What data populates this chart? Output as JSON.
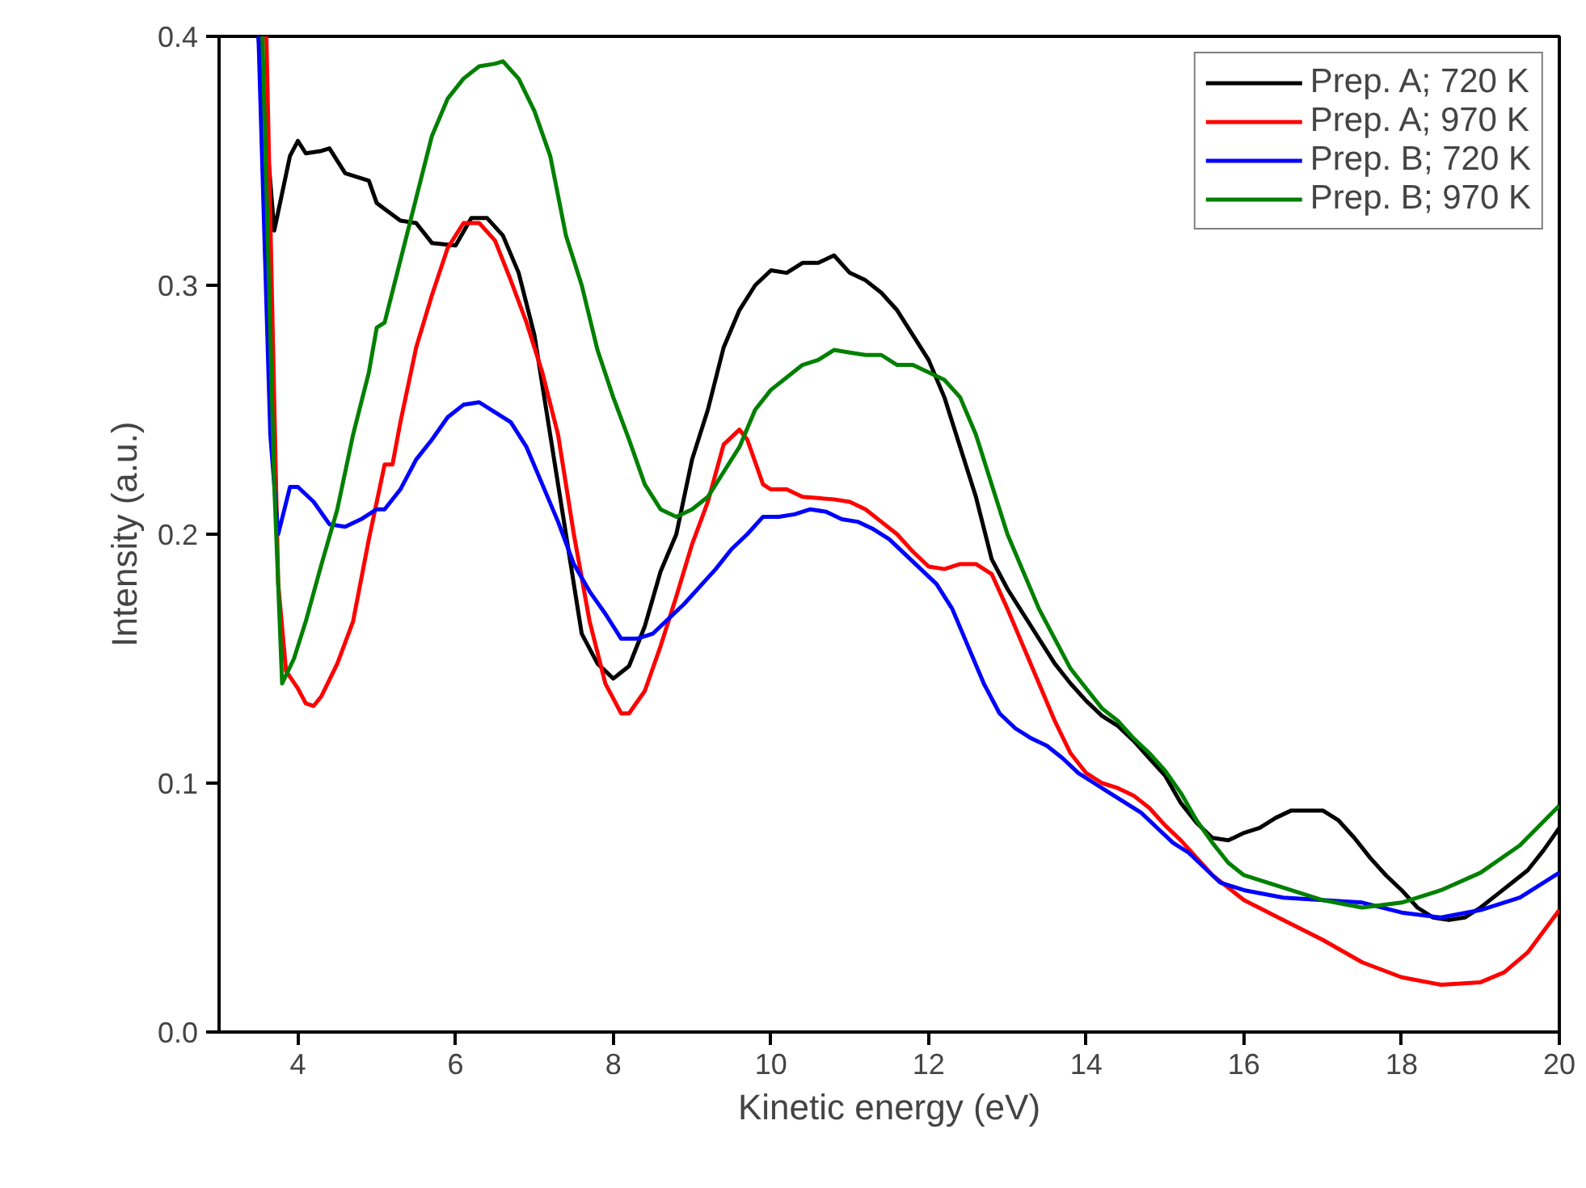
{
  "chart_data": {
    "type": "line",
    "xlabel": "Kinetic energy (eV)",
    "ylabel": "Intensity (a.u.)",
    "xlim": [
      3,
      20
    ],
    "ylim": [
      0,
      0.4
    ],
    "xticks": [
      4,
      6,
      8,
      10,
      12,
      14,
      16,
      18,
      20
    ],
    "yticks": [
      {
        "value": 0,
        "label": "0.0"
      },
      0.1,
      0.2,
      0.3,
      0.4
    ],
    "grid": false,
    "legend": "top right",
    "marker": "none",
    "line_style": "solid",
    "series": [
      {
        "name": "Prep. A; 720 K",
        "color": "#000000",
        "x": [
          3.5,
          3.7,
          3.9,
          4.0,
          4.1,
          4.3,
          4.4,
          4.6,
          4.9,
          5.0,
          5.3,
          5.5,
          5.7,
          6.0,
          6.2,
          6.4,
          6.6,
          6.8,
          7.0,
          7.2,
          7.4,
          7.6,
          7.8,
          8.0,
          8.2,
          8.4,
          8.6,
          8.8,
          9.0,
          9.2,
          9.4,
          9.6,
          9.8,
          10.0,
          10.2,
          10.4,
          10.6,
          10.8,
          11.0,
          11.2,
          11.4,
          11.6,
          11.8,
          12.0,
          12.2,
          12.4,
          12.6,
          12.8,
          13.0,
          13.2,
          13.4,
          13.6,
          13.8,
          14.0,
          14.2,
          14.4,
          14.6,
          14.8,
          15.0,
          15.2,
          15.4,
          15.6,
          15.8,
          16.0,
          16.2,
          16.4,
          16.6,
          16.8,
          17.0,
          17.2,
          17.4,
          17.6,
          17.8,
          18.0,
          18.2,
          18.4,
          18.6,
          18.8,
          19.0,
          19.2,
          19.4,
          19.6,
          19.8,
          20.0
        ],
        "values": [
          0.4,
          0.322,
          0.352,
          0.358,
          0.353,
          0.354,
          0.355,
          0.345,
          0.342,
          0.333,
          0.326,
          0.325,
          0.317,
          0.316,
          0.327,
          0.327,
          0.32,
          0.305,
          0.28,
          0.24,
          0.2,
          0.16,
          0.148,
          0.142,
          0.147,
          0.163,
          0.185,
          0.2,
          0.23,
          0.25,
          0.275,
          0.29,
          0.3,
          0.306,
          0.305,
          0.309,
          0.309,
          0.312,
          0.305,
          0.302,
          0.297,
          0.29,
          0.28,
          0.27,
          0.255,
          0.235,
          0.215,
          0.19,
          0.178,
          0.168,
          0.158,
          0.148,
          0.14,
          0.133,
          0.127,
          0.123,
          0.117,
          0.11,
          0.103,
          0.092,
          0.084,
          0.078,
          0.077,
          0.08,
          0.082,
          0.086,
          0.089,
          0.089,
          0.089,
          0.085,
          0.078,
          0.07,
          0.063,
          0.057,
          0.05,
          0.046,
          0.045,
          0.046,
          0.05,
          0.055,
          0.06,
          0.065,
          0.073,
          0.082
        ]
      },
      {
        "name": "Prep. A; 970 K",
        "color": "#ff0000",
        "x": [
          3.6,
          3.75,
          3.85,
          4.0,
          4.1,
          4.2,
          4.3,
          4.5,
          4.7,
          4.9,
          5.1,
          5.2,
          5.3,
          5.5,
          5.7,
          5.9,
          6.1,
          6.3,
          6.5,
          6.7,
          6.9,
          7.1,
          7.3,
          7.5,
          7.7,
          7.9,
          8.1,
          8.2,
          8.4,
          8.6,
          8.8,
          9.0,
          9.2,
          9.4,
          9.6,
          9.7,
          9.9,
          10.0,
          10.2,
          10.4,
          10.8,
          11.0,
          11.2,
          11.4,
          11.6,
          11.8,
          12.0,
          12.2,
          12.4,
          12.6,
          12.8,
          13.0,
          13.2,
          13.4,
          13.6,
          13.8,
          14.0,
          14.2,
          14.4,
          14.6,
          14.8,
          15.0,
          15.2,
          15.4,
          15.6,
          15.8,
          16.0,
          16.5,
          17.0,
          17.5,
          18.0,
          18.5,
          19.0,
          19.3,
          19.6,
          20.0
        ],
        "values": [
          0.4,
          0.18,
          0.145,
          0.138,
          0.132,
          0.131,
          0.135,
          0.148,
          0.165,
          0.198,
          0.228,
          0.228,
          0.245,
          0.275,
          0.296,
          0.315,
          0.325,
          0.325,
          0.318,
          0.302,
          0.285,
          0.265,
          0.24,
          0.2,
          0.165,
          0.14,
          0.128,
          0.128,
          0.137,
          0.155,
          0.175,
          0.196,
          0.213,
          0.236,
          0.242,
          0.238,
          0.22,
          0.218,
          0.218,
          0.215,
          0.214,
          0.213,
          0.21,
          0.205,
          0.2,
          0.193,
          0.187,
          0.186,
          0.188,
          0.188,
          0.184,
          0.17,
          0.155,
          0.14,
          0.125,
          0.112,
          0.104,
          0.1,
          0.098,
          0.095,
          0.09,
          0.083,
          0.077,
          0.07,
          0.063,
          0.058,
          0.053,
          0.045,
          0.037,
          0.028,
          0.022,
          0.019,
          0.02,
          0.024,
          0.032,
          0.049
        ]
      },
      {
        "name": "Prep. B; 720 K",
        "color": "#0000ff",
        "x": [
          3.5,
          3.65,
          3.75,
          3.9,
          4.0,
          4.2,
          4.4,
          4.6,
          4.8,
          5.0,
          5.1,
          5.3,
          5.5,
          5.7,
          5.9,
          6.1,
          6.3,
          6.5,
          6.7,
          6.9,
          7.1,
          7.3,
          7.5,
          7.7,
          7.9,
          8.1,
          8.3,
          8.5,
          8.7,
          8.9,
          9.1,
          9.3,
          9.5,
          9.7,
          9.9,
          10.1,
          10.3,
          10.5,
          10.7,
          10.9,
          11.1,
          11.3,
          11.5,
          11.7,
          11.9,
          12.1,
          12.3,
          12.5,
          12.7,
          12.9,
          13.1,
          13.3,
          13.5,
          13.7,
          13.9,
          14.1,
          14.3,
          14.5,
          14.7,
          14.9,
          15.1,
          15.3,
          15.5,
          15.7,
          16.0,
          16.5,
          17.0,
          17.5,
          18.0,
          18.5,
          19.0,
          19.5,
          20.0
        ],
        "values": [
          0.4,
          0.24,
          0.2,
          0.219,
          0.219,
          0.213,
          0.204,
          0.203,
          0.206,
          0.21,
          0.21,
          0.218,
          0.23,
          0.238,
          0.247,
          0.252,
          0.253,
          0.249,
          0.245,
          0.235,
          0.22,
          0.205,
          0.188,
          0.177,
          0.168,
          0.158,
          0.158,
          0.16,
          0.166,
          0.172,
          0.179,
          0.186,
          0.194,
          0.2,
          0.207,
          0.207,
          0.208,
          0.21,
          0.209,
          0.206,
          0.205,
          0.202,
          0.198,
          0.192,
          0.186,
          0.18,
          0.17,
          0.155,
          0.14,
          0.128,
          0.122,
          0.118,
          0.115,
          0.11,
          0.104,
          0.1,
          0.096,
          0.092,
          0.088,
          0.082,
          0.076,
          0.072,
          0.066,
          0.06,
          0.057,
          0.054,
          0.053,
          0.052,
          0.048,
          0.046,
          0.049,
          0.054,
          0.064
        ]
      },
      {
        "name": "Prep. B; 970 K",
        "color": "#008000",
        "x": [
          3.55,
          3.7,
          3.8,
          3.95,
          4.1,
          4.3,
          4.5,
          4.7,
          4.9,
          5.0,
          5.1,
          5.3,
          5.5,
          5.7,
          5.9,
          6.1,
          6.3,
          6.5,
          6.6,
          6.8,
          7.0,
          7.2,
          7.4,
          7.6,
          7.8,
          8.0,
          8.2,
          8.4,
          8.6,
          8.8,
          9.0,
          9.2,
          9.4,
          9.6,
          9.8,
          10.0,
          10.2,
          10.4,
          10.6,
          10.8,
          11.0,
          11.2,
          11.4,
          11.6,
          11.8,
          12.0,
          12.2,
          12.4,
          12.6,
          12.8,
          13.0,
          13.2,
          13.4,
          13.6,
          13.8,
          14.0,
          14.2,
          14.4,
          14.6,
          14.8,
          15.0,
          15.2,
          15.4,
          15.6,
          15.8,
          16.0,
          16.5,
          17.0,
          17.5,
          18.0,
          18.5,
          19.0,
          19.5,
          20.0
        ],
        "values": [
          0.4,
          0.22,
          0.14,
          0.15,
          0.165,
          0.188,
          0.21,
          0.24,
          0.265,
          0.283,
          0.285,
          0.31,
          0.335,
          0.36,
          0.375,
          0.383,
          0.388,
          0.389,
          0.39,
          0.383,
          0.37,
          0.352,
          0.32,
          0.3,
          0.274,
          0.255,
          0.238,
          0.22,
          0.21,
          0.207,
          0.21,
          0.215,
          0.225,
          0.235,
          0.25,
          0.258,
          0.263,
          0.268,
          0.27,
          0.274,
          0.273,
          0.272,
          0.272,
          0.268,
          0.268,
          0.265,
          0.262,
          0.255,
          0.24,
          0.22,
          0.2,
          0.185,
          0.17,
          0.158,
          0.146,
          0.138,
          0.13,
          0.125,
          0.118,
          0.112,
          0.105,
          0.096,
          0.085,
          0.076,
          0.068,
          0.063,
          0.058,
          0.053,
          0.05,
          0.052,
          0.057,
          0.064,
          0.075,
          0.091
        ]
      }
    ]
  }
}
